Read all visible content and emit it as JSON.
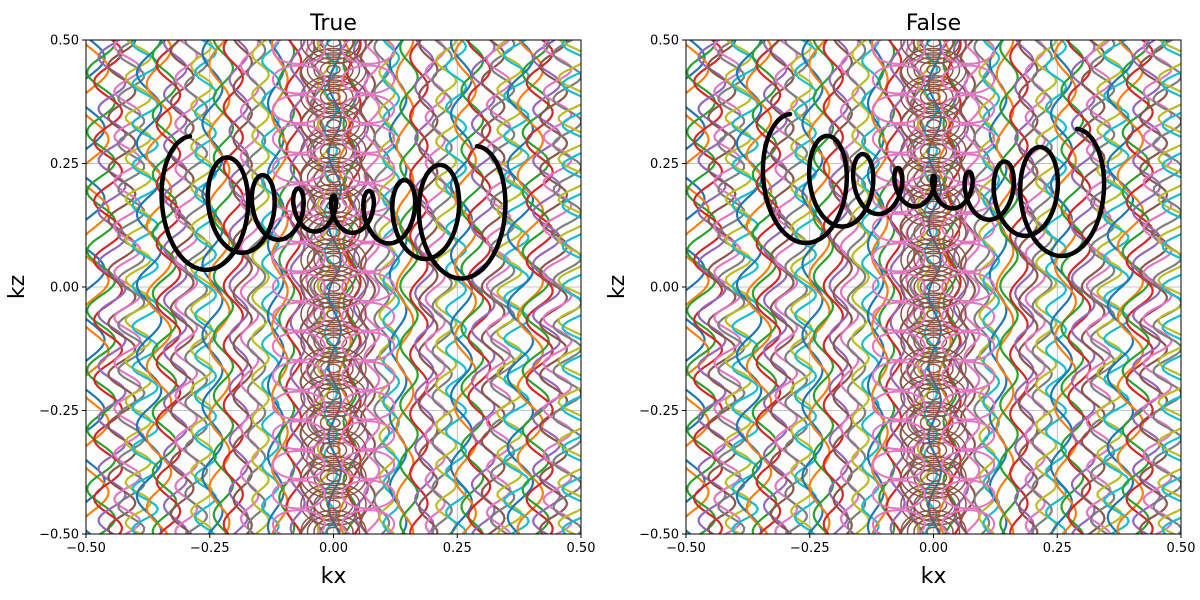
{
  "chart_data": [
    {
      "type": "line",
      "title": "True",
      "xlabel": "kx",
      "ylabel": "kz",
      "xlim": [
        -0.5,
        0.5
      ],
      "ylim": [
        -0.5,
        0.5
      ],
      "xticks": [
        "−0.50",
        "−0.25",
        "0.00",
        "0.25",
        "0.50"
      ],
      "yticks": [
        "−0.50",
        "−0.25",
        "0.00",
        "0.25",
        "0.50"
      ],
      "grid": true,
      "highlight": {
        "color": "#000000",
        "x_start": -0.29,
        "x_end": 0.29,
        "center_start": 0.16,
        "center_end": 0.14,
        "radius_edge": 0.145,
        "radius_mid": 0.035,
        "loops": 8
      },
      "background": {
        "colors": [
          "#1f77b4",
          "#ff7f0e",
          "#2ca02c",
          "#d62728",
          "#9467bd",
          "#8c564b",
          "#e377c2",
          "#7f7f7f",
          "#bcbd22",
          "#17becf"
        ],
        "center_ellipse_color": "#8c564b",
        "columns": 40
      }
    },
    {
      "type": "line",
      "title": "False",
      "xlabel": "kx",
      "ylabel": "kz",
      "xlim": [
        -0.5,
        0.5
      ],
      "ylim": [
        -0.5,
        0.5
      ],
      "xticks": [
        "−0.50",
        "−0.25",
        "0.00",
        "0.25",
        "0.50"
      ],
      "yticks": [
        "−0.50",
        "−0.25",
        "0.00",
        "0.25",
        "0.50"
      ],
      "grid": true,
      "highlight": {
        "color": "#000000",
        "x_start": -0.29,
        "x_end": 0.29,
        "center_start": 0.21,
        "center_end": 0.18,
        "radius_edge": 0.14,
        "radius_mid": 0.03,
        "loops": 8
      },
      "background": {
        "colors": [
          "#1f77b4",
          "#ff7f0e",
          "#2ca02c",
          "#d62728",
          "#9467bd",
          "#8c564b",
          "#e377c2",
          "#7f7f7f",
          "#bcbd22",
          "#17becf"
        ],
        "center_ellipse_color": "#8c564b",
        "columns": 40
      }
    }
  ]
}
